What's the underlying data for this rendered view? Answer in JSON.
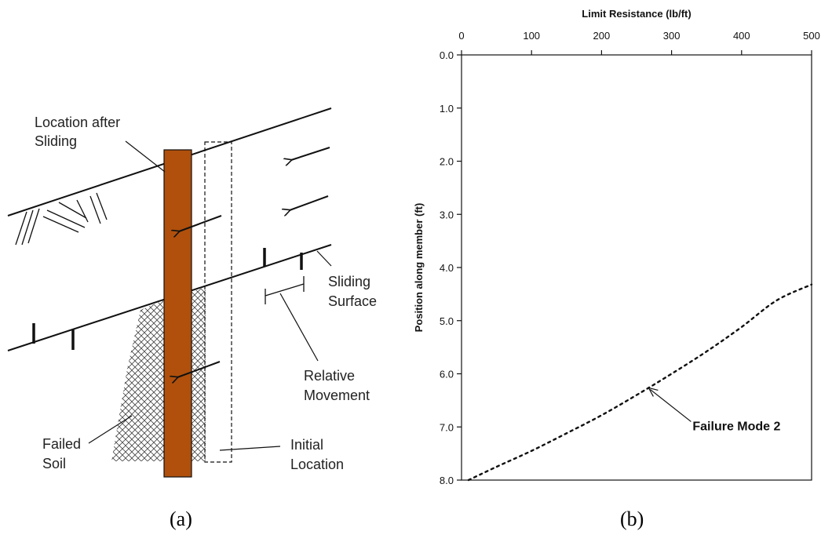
{
  "panel_a": {
    "labels": {
      "location_after_line1": "Location after",
      "location_after_line2": "Sliding",
      "sliding_line1": "Sliding",
      "sliding_line2": "Surface",
      "relative_line1": "Relative",
      "relative_line2": "Movement",
      "failed_line1": "Failed",
      "failed_line2": "Soil",
      "initial_line1": "Initial",
      "initial_line2": "Location"
    },
    "colors": {
      "pile": "#b0500c",
      "line": "#111111"
    },
    "caption": "(a)"
  },
  "panel_b": {
    "caption": "(b)"
  },
  "chart_data": {
    "type": "line",
    "title": "",
    "xlabel": "Limit Resistance  (lb/ft)",
    "ylabel": "Position along member (ft)",
    "xlim": [
      0,
      500
    ],
    "ylim": [
      0,
      8
    ],
    "y_inverted": true,
    "x_axis_position": "top",
    "x_ticks": [
      0,
      100,
      200,
      300,
      400,
      500
    ],
    "y_ticks": [
      0,
      1,
      2,
      3,
      4,
      5,
      6,
      7,
      8
    ],
    "y_tick_labels": [
      "0.0",
      "1.0",
      "2.0",
      "3.0",
      "4.0",
      "5.0",
      "6.0",
      "7.0",
      "8.0"
    ],
    "grid": false,
    "series": [
      {
        "style": "dotted",
        "color": "#111111",
        "x": [
          10,
          50,
          100,
          150,
          200,
          250,
          300,
          350,
          400,
          450,
          500
        ],
        "y": [
          8.0,
          7.75,
          7.45,
          7.12,
          6.78,
          6.4,
          6.0,
          5.58,
          5.12,
          4.62,
          4.32
        ]
      }
    ],
    "annotations": [
      {
        "text": "Failure Mode 2",
        "x": 265,
        "y": 6.25
      }
    ]
  }
}
